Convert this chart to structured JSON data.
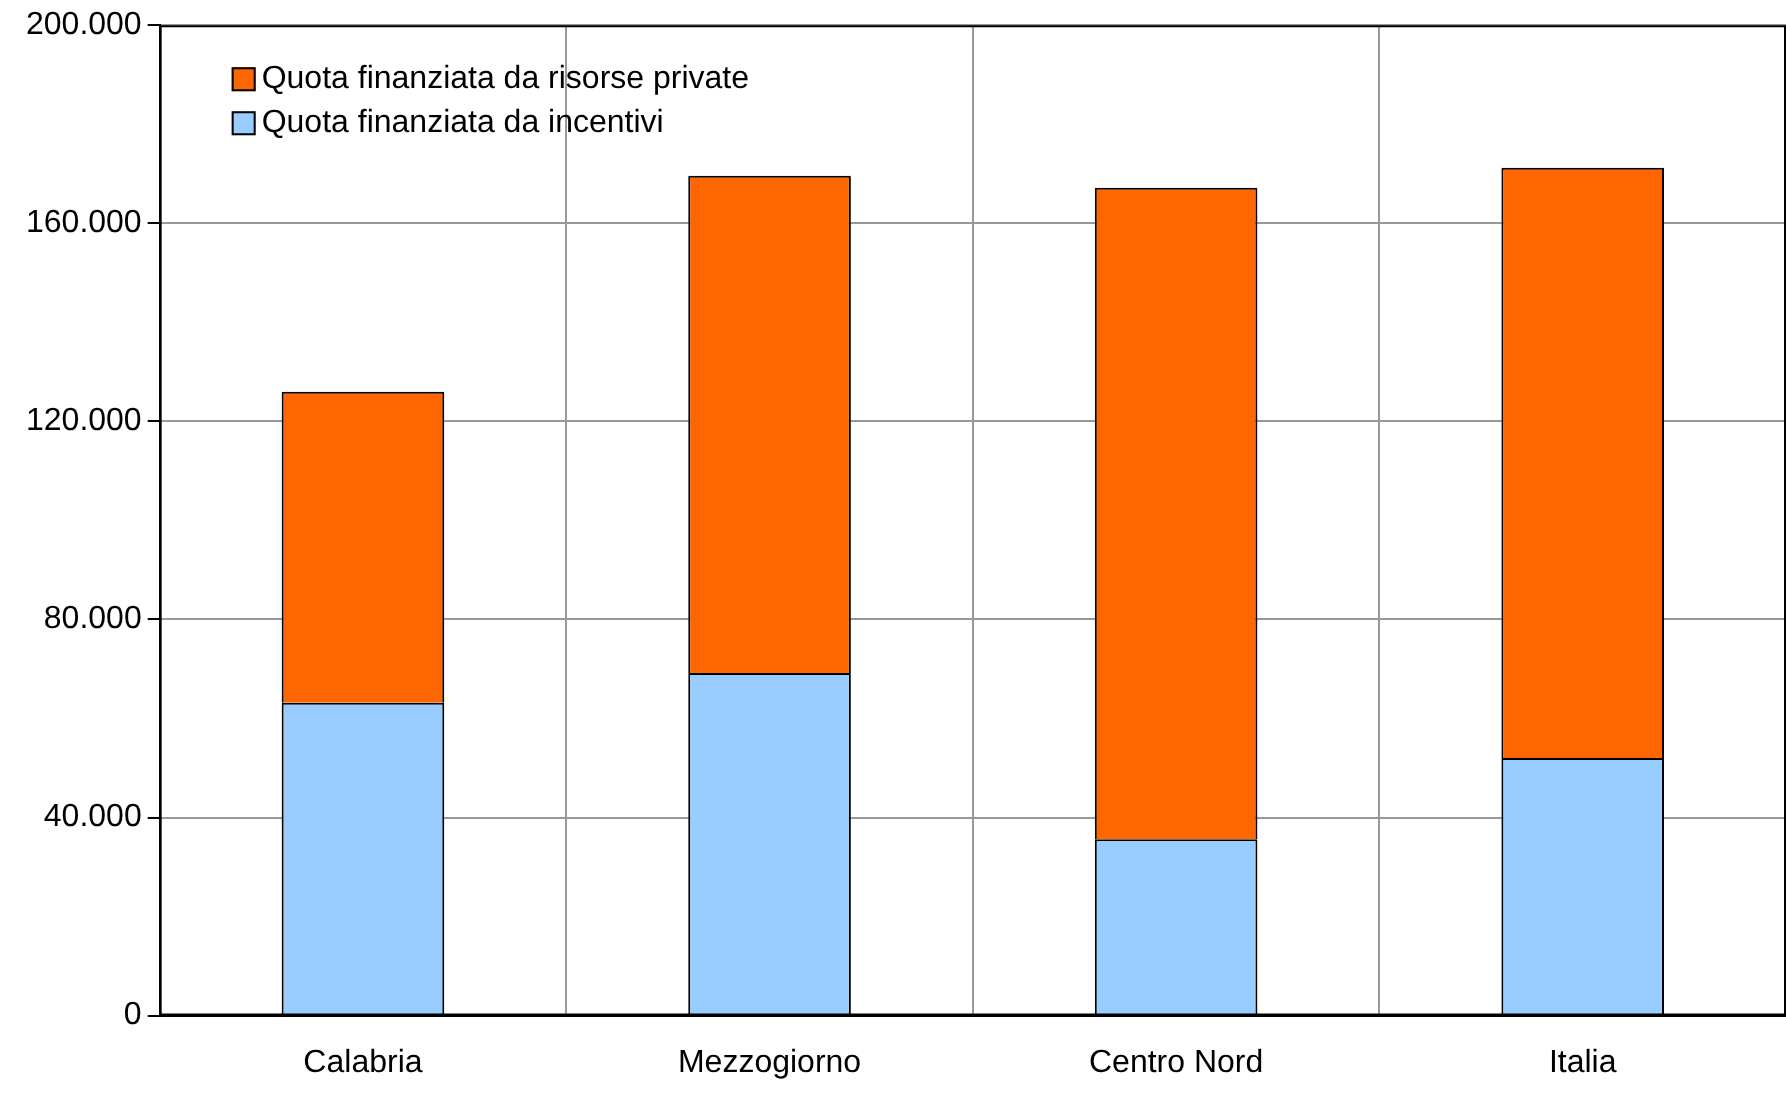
{
  "chart_data": {
    "type": "bar",
    "stacked": true,
    "categories": [
      "Calabria",
      "Mezzogiorno",
      "Centro Nord",
      "Italia"
    ],
    "series": [
      {
        "name": "Quota finanziata da incentivi",
        "color": "#99ccff",
        "values": [
          63200,
          69200,
          35600,
          52000
        ]
      },
      {
        "name": "Quota finanziata da risorse private",
        "color": "#ff6600",
        "values": [
          62800,
          100400,
          131600,
          119200
        ]
      }
    ],
    "ylim": [
      0,
      200000
    ],
    "yticks": [
      0,
      {
        "value": 40000,
        "label": "40.000"
      },
      {
        "value": 80000,
        "label": "80.000"
      },
      {
        "value": 120000,
        "label": "120.000"
      },
      {
        "value": 160000,
        "label": "160.000"
      },
      {
        "value": 200000,
        "label": "200.000"
      }
    ],
    "grid": true,
    "legend": "top left"
  }
}
